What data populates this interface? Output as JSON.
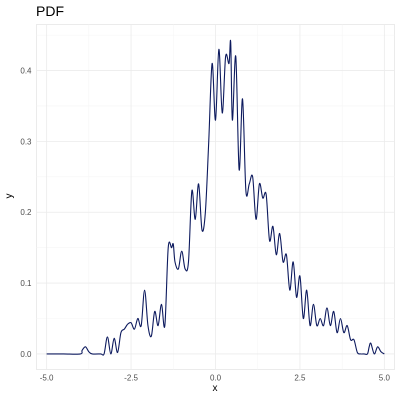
{
  "chart_data": {
    "type": "line",
    "title": "PDF",
    "xlabel": "x",
    "ylabel": "y",
    "xlim": [
      -5.3,
      5.3
    ],
    "ylim": [
      -0.022,
      0.465
    ],
    "x_ticks": [
      -5.0,
      -2.5,
      0.0,
      2.5,
      5.0
    ],
    "x_tick_labels": [
      "-5.0",
      "-2.5",
      "0.0",
      "2.5",
      "5.0"
    ],
    "y_ticks": [
      0.0,
      0.1,
      0.2,
      0.3,
      0.4
    ],
    "y_tick_labels": [
      "0.0",
      "0.1",
      "0.2",
      "0.3",
      "0.4"
    ],
    "grid": true,
    "line_color": "#0d1a5e",
    "series": [
      {
        "x": [
          -5.0,
          -4.5,
          -4.0,
          -3.95,
          -3.85,
          -3.75,
          -3.65,
          -3.4,
          -3.3,
          -3.2,
          -3.1,
          -3.0,
          -2.9,
          -2.8,
          -2.7,
          -2.6,
          -2.5,
          -2.4,
          -2.3,
          -2.2,
          -2.1,
          -2.0,
          -1.9,
          -1.8,
          -1.7,
          -1.6,
          -1.5,
          -1.4,
          -1.3,
          -1.25,
          -1.2,
          -1.1,
          -1.0,
          -0.9,
          -0.8,
          -0.7,
          -0.6,
          -0.5,
          -0.4,
          -0.3,
          -0.2,
          -0.1,
          0.0,
          0.1,
          0.2,
          0.3,
          0.4,
          0.45,
          0.5,
          0.6,
          0.7,
          0.8,
          0.9,
          1.0,
          1.1,
          1.2,
          1.3,
          1.4,
          1.5,
          1.6,
          1.7,
          1.8,
          1.9,
          2.0,
          2.1,
          2.2,
          2.3,
          2.4,
          2.5,
          2.6,
          2.7,
          2.8,
          2.9,
          3.0,
          3.1,
          3.2,
          3.3,
          3.4,
          3.5,
          3.6,
          3.7,
          3.8,
          3.9,
          4.0,
          4.1,
          4.2,
          4.3,
          4.4,
          4.5,
          4.55,
          4.6,
          4.7,
          4.8,
          4.9,
          5.0
        ],
        "y": [
          0.0,
          0.0,
          0.0,
          0.005,
          0.01,
          0.003,
          0.0,
          0.0,
          0.0,
          0.024,
          0.0,
          0.022,
          0.002,
          0.03,
          0.035,
          0.042,
          0.044,
          0.035,
          0.05,
          0.04,
          0.09,
          0.04,
          0.025,
          0.06,
          0.04,
          0.07,
          0.04,
          0.15,
          0.15,
          0.155,
          0.13,
          0.12,
          0.145,
          0.12,
          0.13,
          0.23,
          0.19,
          0.24,
          0.175,
          0.2,
          0.3,
          0.41,
          0.33,
          0.43,
          0.34,
          0.42,
          0.41,
          0.44,
          0.33,
          0.42,
          0.26,
          0.36,
          0.23,
          0.24,
          0.25,
          0.19,
          0.24,
          0.22,
          0.225,
          0.16,
          0.18,
          0.14,
          0.17,
          0.13,
          0.14,
          0.09,
          0.13,
          0.08,
          0.11,
          0.05,
          0.09,
          0.04,
          0.07,
          0.04,
          0.05,
          0.04,
          0.065,
          0.04,
          0.06,
          0.03,
          0.05,
          0.03,
          0.04,
          0.02,
          0.02,
          0.002,
          0.0,
          0.0,
          0.0,
          0.01,
          0.015,
          0.0,
          0.01,
          0.003,
          0.0
        ]
      }
    ]
  }
}
